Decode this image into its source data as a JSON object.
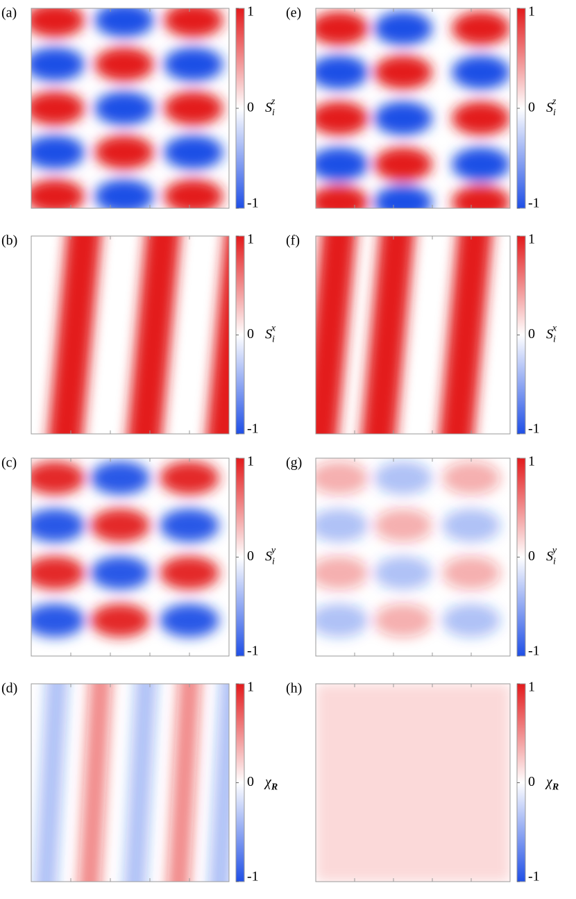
{
  "panels": [
    {
      "label": "(a)",
      "colorbar": {
        "symbol": "S",
        "subscript": "i",
        "superscript": "z",
        "clim": [
          -1,
          1
        ],
        "ticks": [
          -1,
          0,
          1
        ]
      }
    },
    {
      "label": "(b)",
      "colorbar": {
        "symbol": "S",
        "subscript": "i",
        "superscript": "x",
        "clim": [
          -1,
          1
        ],
        "ticks": [
          -1,
          0,
          1
        ]
      }
    },
    {
      "label": "(c)",
      "colorbar": {
        "symbol": "S",
        "subscript": "i",
        "superscript": "y",
        "clim": [
          -1,
          1
        ],
        "ticks": [
          -1,
          0,
          1
        ]
      }
    },
    {
      "label": "(d)",
      "colorbar": {
        "symbol": "χ",
        "subscript": "R",
        "clim": [
          -1,
          1
        ],
        "ticks": [
          -1,
          0,
          1
        ]
      }
    },
    {
      "label": "(e)",
      "colorbar": {
        "symbol": "S",
        "subscript": "i",
        "superscript": "z",
        "clim": [
          -1,
          1
        ],
        "ticks": [
          -1,
          0,
          1
        ]
      }
    },
    {
      "label": "(f)",
      "colorbar": {
        "symbol": "S",
        "subscript": "i",
        "superscript": "x",
        "clim": [
          -1,
          1
        ],
        "ticks": [
          -1,
          0,
          1
        ]
      }
    },
    {
      "label": "(g)",
      "colorbar": {
        "symbol": "S",
        "subscript": "i",
        "superscript": "y",
        "clim": [
          -1,
          1
        ],
        "ticks": [
          -1,
          0,
          1
        ]
      }
    },
    {
      "label": "(h)",
      "colorbar": {
        "symbol": "χ",
        "subscript": "R",
        "clim": [
          -1,
          1
        ],
        "ticks": [
          -1,
          0,
          1
        ]
      }
    }
  ]
}
